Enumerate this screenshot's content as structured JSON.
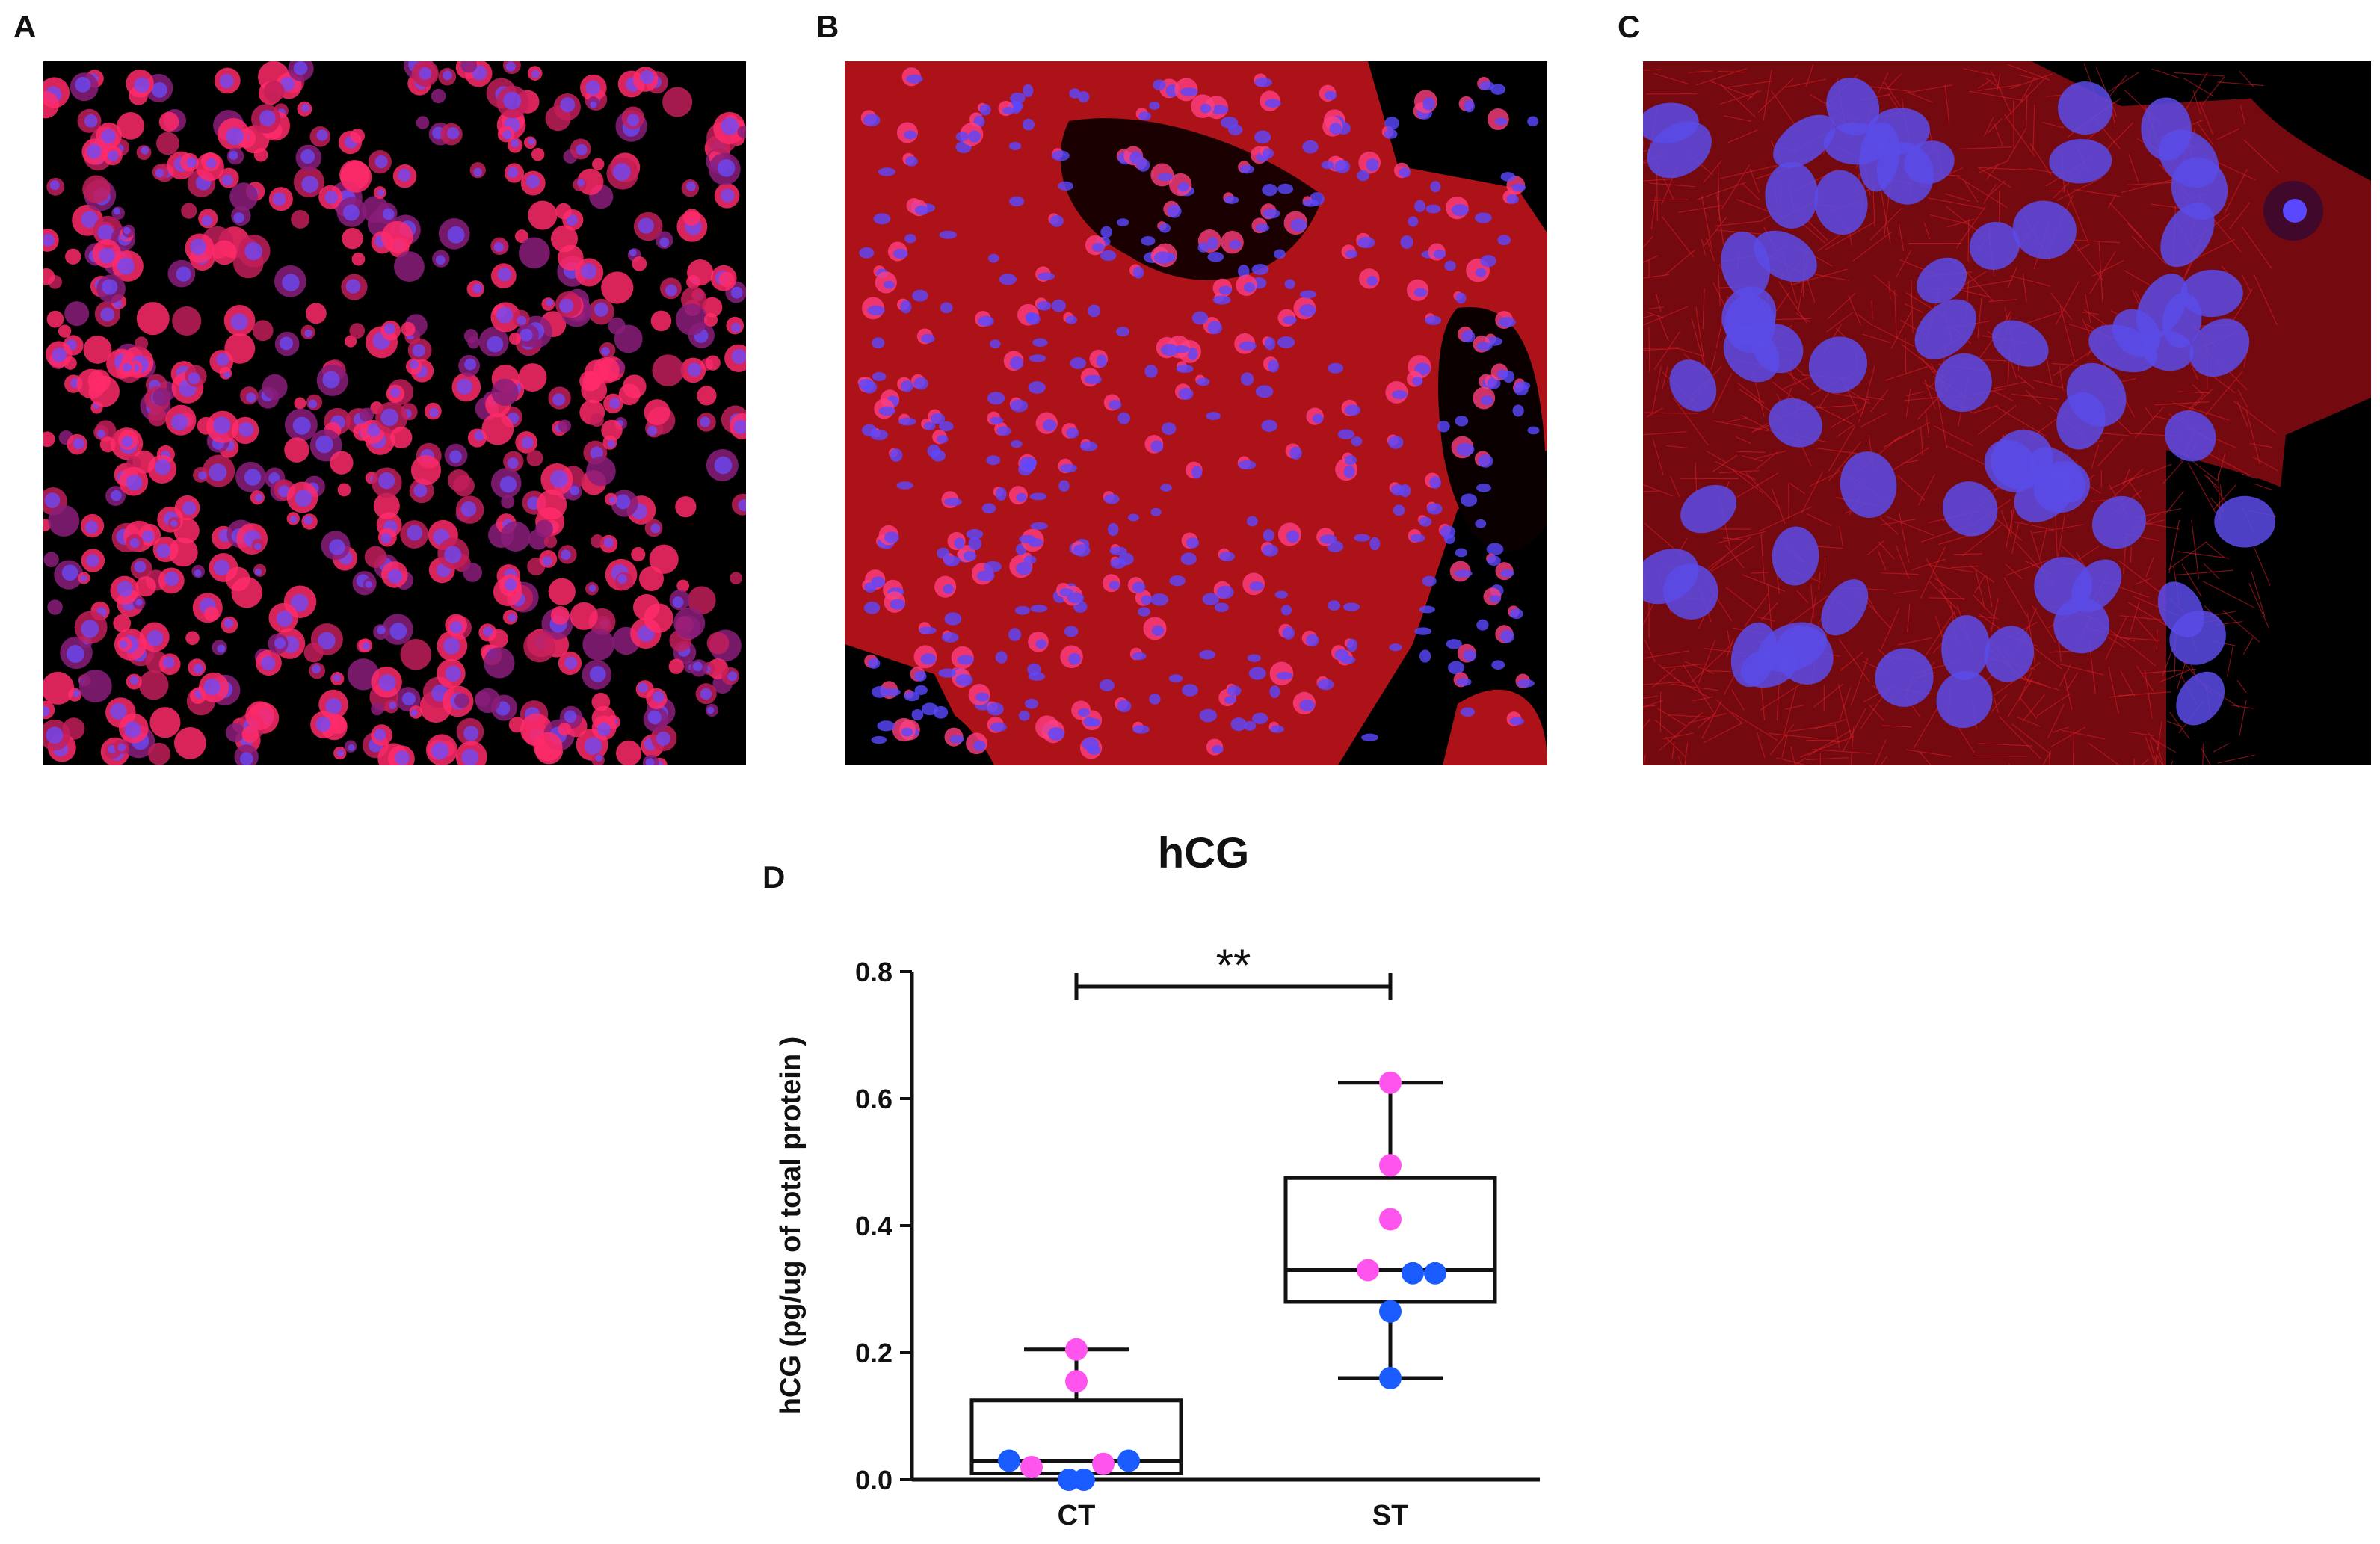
{
  "panels": {
    "a": {
      "letter": "A",
      "description_colors": {
        "background": "#000000",
        "cytoplasm": "#ff2a55",
        "nuclei": "#3a3aff"
      }
    },
    "b": {
      "letter": "B"
    },
    "c": {
      "letter": "C"
    },
    "d": {
      "letter": "D"
    }
  },
  "chart_data": {
    "type": "box",
    "title": "hCG",
    "ylabel": "hCG (pg/ug of total protein )",
    "xlabel": "",
    "categories": [
      "CT",
      "ST"
    ],
    "ylim": [
      0,
      0.8
    ],
    "yticks": [
      "0.0",
      "0.2",
      "0.4",
      "0.6",
      "0.8"
    ],
    "boxes": [
      {
        "category": "CT",
        "min": 0.0,
        "q1": 0.01,
        "median": 0.03,
        "q3": 0.125,
        "max": 0.205
      },
      {
        "category": "ST",
        "min": 0.16,
        "q1": 0.28,
        "median": 0.33,
        "q3": 0.475,
        "max": 0.625
      }
    ],
    "points": [
      {
        "category": "CT",
        "x_offset": 0.0,
        "y": 0.205,
        "color": "pink"
      },
      {
        "category": "CT",
        "x_offset": 0.0,
        "y": 0.155,
        "color": "pink"
      },
      {
        "category": "CT",
        "x_offset": -0.3,
        "y": 0.02,
        "color": "pink"
      },
      {
        "category": "CT",
        "x_offset": 0.18,
        "y": 0.025,
        "color": "pink"
      },
      {
        "category": "CT",
        "x_offset": -0.45,
        "y": 0.03,
        "color": "blue"
      },
      {
        "category": "CT",
        "x_offset": -0.05,
        "y": 0.0,
        "color": "blue"
      },
      {
        "category": "CT",
        "x_offset": 0.05,
        "y": 0.0,
        "color": "blue"
      },
      {
        "category": "CT",
        "x_offset": 0.35,
        "y": 0.03,
        "color": "blue"
      },
      {
        "category": "ST",
        "x_offset": 0.0,
        "y": 0.625,
        "color": "pink"
      },
      {
        "category": "ST",
        "x_offset": 0.0,
        "y": 0.495,
        "color": "pink"
      },
      {
        "category": "ST",
        "x_offset": 0.0,
        "y": 0.41,
        "color": "pink"
      },
      {
        "category": "ST",
        "x_offset": -0.15,
        "y": 0.33,
        "color": "pink"
      },
      {
        "category": "ST",
        "x_offset": 0.15,
        "y": 0.325,
        "color": "blue"
      },
      {
        "category": "ST",
        "x_offset": 0.3,
        "y": 0.325,
        "color": "blue"
      },
      {
        "category": "ST",
        "x_offset": 0.0,
        "y": 0.265,
        "color": "blue"
      },
      {
        "category": "ST",
        "x_offset": 0.0,
        "y": 0.16,
        "color": "blue"
      }
    ],
    "significance": {
      "between": [
        "CT",
        "ST"
      ],
      "label": "**"
    },
    "colors": {
      "pink": "#ff55ee",
      "blue": "#1a5cff",
      "line": "#111111"
    }
  }
}
